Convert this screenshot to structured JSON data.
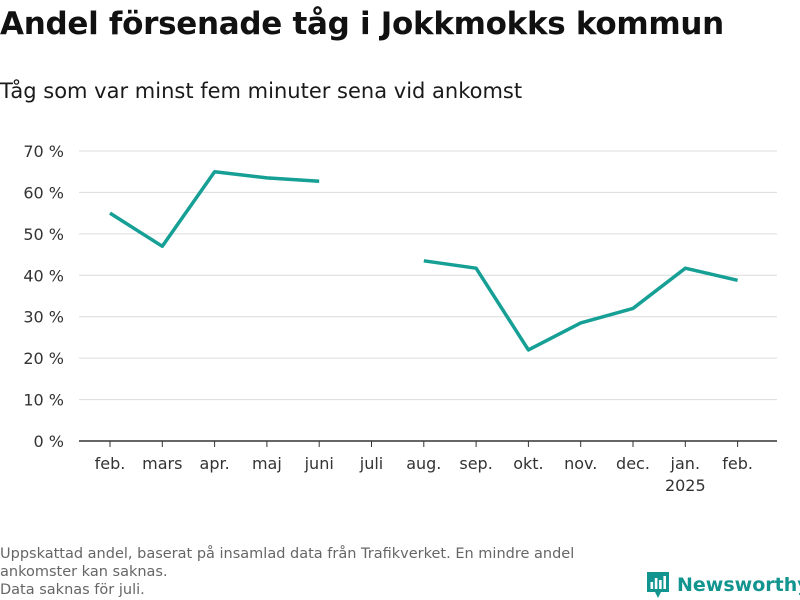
{
  "title": "Andel försenade tåg i Jokkmokks kommun",
  "subtitle": "Tåg som var minst fem minuter sena vid ankomst",
  "footnote": {
    "line1": "Uppskattad andel, baserat på insamlad data från Trafikverket. En mindre andel",
    "line2": "ankomster kan saknas.",
    "line3": "Data saknas för juli."
  },
  "brand": {
    "name": "Newsworthy",
    "icon": "newsworthy-logo-icon"
  },
  "colors": {
    "line": "#16a095",
    "grid": "#dcdcdc",
    "axis": "#333333",
    "brand": "#12948f"
  },
  "chart_data": {
    "type": "line",
    "categories": [
      "feb.",
      "mars",
      "apr.",
      "maj",
      "juni",
      "juli",
      "aug.",
      "sep.",
      "okt.",
      "nov.",
      "dec.",
      "jan.",
      "feb."
    ],
    "category_sublabels": [
      "",
      "",
      "",
      "",
      "",
      "",
      "",
      "",
      "",
      "",
      "",
      "2025",
      ""
    ],
    "series": [
      {
        "values": [
          55,
          47,
          65,
          63.5,
          62.7,
          null,
          43.5,
          41.7,
          22,
          28.5,
          32,
          41.7,
          38.8
        ]
      }
    ],
    "ylim": [
      0,
      70
    ],
    "yticks": [
      0,
      10,
      20,
      30,
      40,
      50,
      60,
      70
    ],
    "ytick_labels": [
      "0 %",
      "10 %",
      "20 %",
      "30 %",
      "40 %",
      "50 %",
      "60 %",
      "70 %"
    ],
    "grid": true,
    "xlabel": "",
    "ylabel": ""
  }
}
